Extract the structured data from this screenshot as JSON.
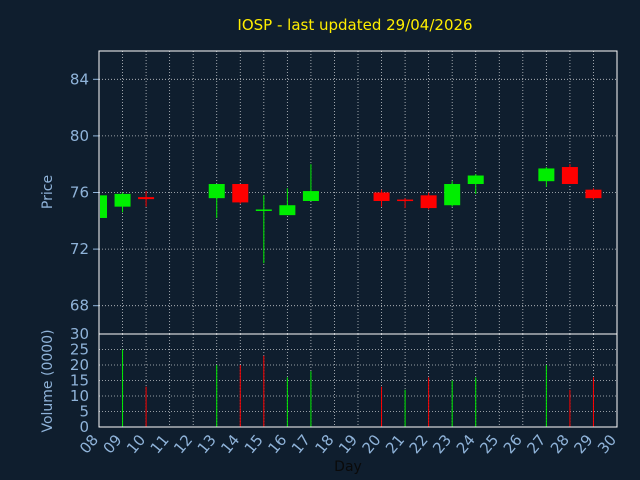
{
  "chart_data": [
    {
      "type": "candlestick",
      "title": "IOSP - last updated 29/04/2026",
      "ylabel": "Price",
      "ylim": [
        66,
        86
      ],
      "yticks": [
        68,
        72,
        76,
        80,
        84
      ],
      "grid": true,
      "colors": {
        "up": "#00ee00",
        "down": "#ff0000",
        "background": "#0f1e2e",
        "axis_text": "#8fb3d9",
        "title": "#ffee00",
        "grid": "#ffffff"
      },
      "days": [
        8,
        9,
        13,
        14,
        15,
        16,
        17,
        20,
        21,
        22,
        23,
        24,
        27,
        28,
        29
      ],
      "open": [
        74.2,
        75.0,
        75.6,
        76.6,
        74.8,
        74.4,
        75.4,
        76.0,
        75.5,
        75.8,
        75.1,
        76.6,
        76.8,
        77.8,
        76.2
      ],
      "high": [
        75.9,
        76.0,
        76.4,
        76.6,
        75.8,
        76.3,
        78.0,
        76.2,
        75.6,
        76.0,
        76.8,
        77.3,
        77.8,
        78.0,
        76.3
      ],
      "low": [
        74.2,
        74.6,
        74.2,
        75.2,
        71.0,
        74.4,
        75.4,
        75.0,
        74.9,
        74.8,
        75.0,
        75.9,
        76.4,
        76.6,
        75.5
      ],
      "close": [
        75.8,
        75.9,
        76.6,
        75.3,
        74.8,
        75.1,
        76.1,
        75.4,
        75.4,
        74.9,
        76.6,
        77.2,
        77.7,
        76.6,
        75.6
      ],
      "flat_candle": {
        "day": 10,
        "open": 75.6,
        "high": 76.1,
        "low": 75.0,
        "close": 75.6
      }
    },
    {
      "type": "bar",
      "ylabel": "Volume (0000)",
      "xlabel": "Day",
      "ylim": [
        0,
        30
      ],
      "yticks": [
        0,
        5,
        10,
        15,
        20,
        25,
        30
      ],
      "xticks": [
        "08",
        "09",
        "10",
        "11",
        "12",
        "13",
        "14",
        "15",
        "16",
        "17",
        "18",
        "19",
        "20",
        "21",
        "22",
        "23",
        "24",
        "25",
        "26",
        "27",
        "28",
        "29",
        "30"
      ],
      "days": [
        9,
        10,
        13,
        14,
        15,
        16,
        17,
        20,
        21,
        22,
        23,
        24,
        27,
        28,
        29
      ],
      "values": [
        25,
        13,
        20,
        20,
        23,
        16,
        18,
        13,
        12,
        16,
        15,
        16,
        20,
        12,
        16
      ],
      "up": [
        true,
        false,
        true,
        false,
        false,
        true,
        true,
        false,
        true,
        false,
        true,
        true,
        true,
        false,
        false
      ]
    }
  ]
}
